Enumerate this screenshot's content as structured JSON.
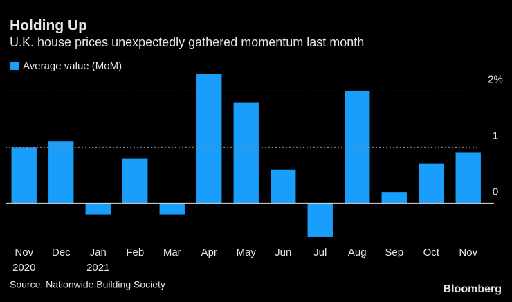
{
  "chart_data": {
    "type": "bar",
    "title": "Holding Up",
    "subtitle": "U.K. house prices unexpectedly gathered momentum last month",
    "series_name": "Average value (MoM)",
    "color": "#1a9efc",
    "categories": [
      "Nov\n2020",
      "Dec",
      "Jan\n2021",
      "Feb",
      "Mar",
      "Apr",
      "May",
      "Jun",
      "Jul",
      "Aug",
      "Sep",
      "Oct",
      "Nov"
    ],
    "values": [
      1.0,
      1.1,
      -0.2,
      0.8,
      -0.2,
      2.3,
      1.8,
      0.6,
      -0.6,
      2.0,
      0.2,
      0.7,
      0.9
    ],
    "ylim": [
      -0.65,
      2.35
    ],
    "yticks": [
      0,
      1,
      {
        "value": 2,
        "label": "2%"
      }
    ],
    "grid": true,
    "source": "Source: Nationwide Building Society",
    "brand": "Bloomberg"
  }
}
